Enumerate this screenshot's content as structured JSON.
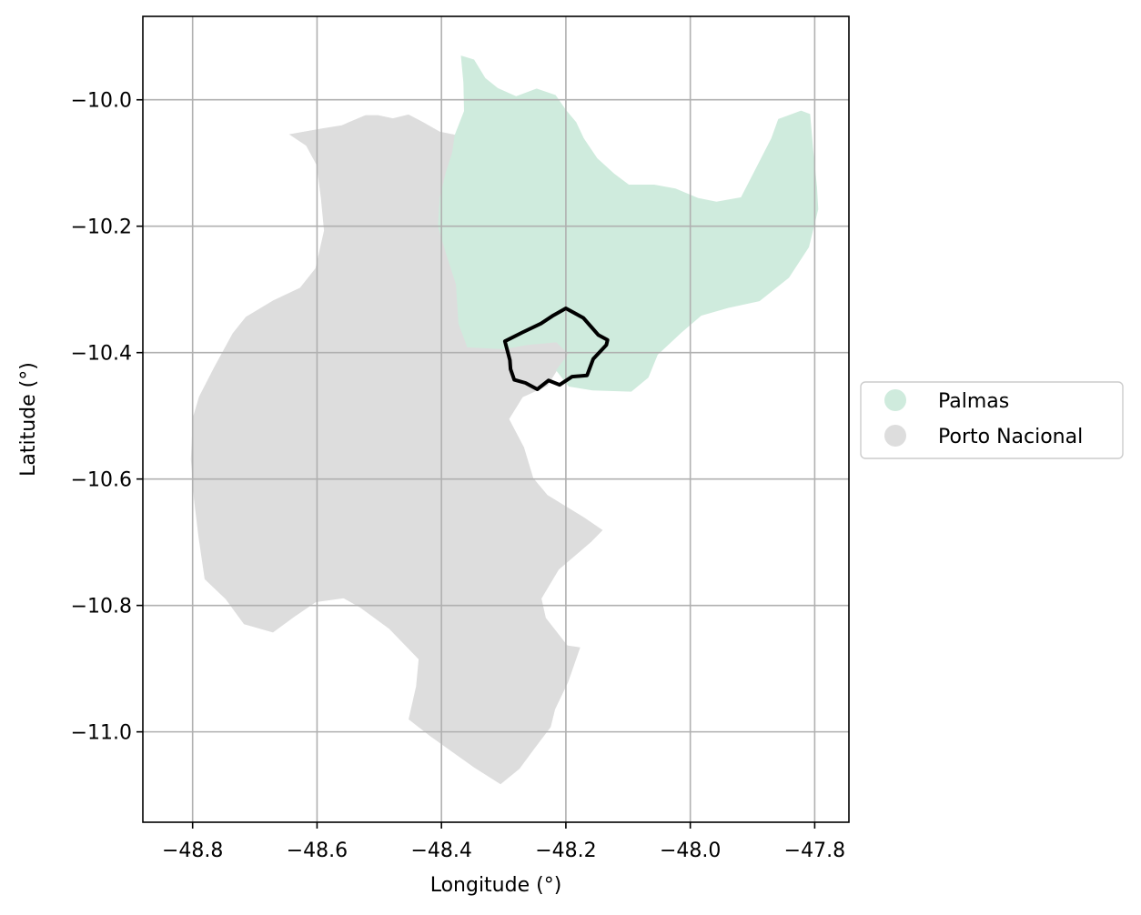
{
  "axes": {
    "xlabel": "Longitude (°)",
    "ylabel": "Latitude (°)",
    "x_ticks": [
      -48.8,
      -48.6,
      -48.4,
      -48.2,
      -48.0,
      -47.8
    ],
    "x_tick_labels": [
      "−48.8",
      "−48.6",
      "−48.4",
      "−48.2",
      "−48.0",
      "−47.8"
    ],
    "y_ticks": [
      -10.0,
      -10.2,
      -10.4,
      -10.6,
      -10.8,
      -11.0
    ],
    "y_tick_labels": [
      "−10.0",
      "−10.2",
      "−10.4",
      "−10.6",
      "−10.8",
      "−11.0"
    ],
    "xlim": [
      -48.88,
      -47.745
    ],
    "ylim": [
      -11.143,
      -9.868
    ],
    "grid": true,
    "grid_color": "#b0b0b0"
  },
  "legend": {
    "placement": "right-center",
    "items": [
      {
        "label": "Palmas",
        "color": "#cfebdd"
      },
      {
        "label": "Porto Nacional",
        "color": "#dddddd"
      }
    ]
  },
  "regions": [
    {
      "name": "Porto Nacional",
      "color": "#dddddd",
      "coords": [
        [
          -48.522,
          -10.025
        ],
        [
          -48.502,
          -10.025
        ],
        [
          -48.478,
          -10.03
        ],
        [
          -48.453,
          -10.024
        ],
        [
          -48.43,
          -10.036
        ],
        [
          -48.403,
          -10.051
        ],
        [
          -48.378,
          -10.056
        ],
        [
          -48.382,
          -10.083
        ],
        [
          -48.393,
          -10.117
        ],
        [
          -48.402,
          -10.155
        ],
        [
          -48.405,
          -10.2
        ],
        [
          -48.392,
          -10.243
        ],
        [
          -48.376,
          -10.292
        ],
        [
          -48.372,
          -10.354
        ],
        [
          -48.358,
          -10.391
        ],
        [
          -48.3,
          -10.394
        ],
        [
          -48.262,
          -10.387
        ],
        [
          -48.215,
          -10.383
        ],
        [
          -48.195,
          -10.402
        ],
        [
          -48.215,
          -10.428
        ],
        [
          -48.23,
          -10.452
        ],
        [
          -48.27,
          -10.47
        ],
        [
          -48.292,
          -10.505
        ],
        [
          -48.268,
          -10.55
        ],
        [
          -48.253,
          -10.599
        ],
        [
          -48.23,
          -10.626
        ],
        [
          -48.17,
          -10.662
        ],
        [
          -48.142,
          -10.681
        ],
        [
          -48.16,
          -10.699
        ],
        [
          -48.18,
          -10.716
        ],
        [
          -48.212,
          -10.743
        ],
        [
          -48.24,
          -10.789
        ],
        [
          -48.233,
          -10.82
        ],
        [
          -48.198,
          -10.864
        ],
        [
          -48.178,
          -10.867
        ],
        [
          -48.197,
          -10.921
        ],
        [
          -48.218,
          -10.964
        ],
        [
          -48.225,
          -10.992
        ],
        [
          -48.251,
          -11.026
        ],
        [
          -48.275,
          -11.058
        ],
        [
          -48.305,
          -11.082
        ],
        [
          -48.347,
          -11.056
        ],
        [
          -48.378,
          -11.034
        ],
        [
          -48.418,
          -11.006
        ],
        [
          -48.452,
          -10.98
        ],
        [
          -48.44,
          -10.928
        ],
        [
          -48.436,
          -10.885
        ],
        [
          -48.484,
          -10.836
        ],
        [
          -48.53,
          -10.803
        ],
        [
          -48.557,
          -10.788
        ],
        [
          -48.602,
          -10.794
        ],
        [
          -48.638,
          -10.818
        ],
        [
          -48.671,
          -10.842
        ],
        [
          -48.717,
          -10.829
        ],
        [
          -48.746,
          -10.79
        ],
        [
          -48.78,
          -10.758
        ],
        [
          -48.79,
          -10.69
        ],
        [
          -48.797,
          -10.632
        ],
        [
          -48.802,
          -10.569
        ],
        [
          -48.799,
          -10.503
        ],
        [
          -48.789,
          -10.47
        ],
        [
          -48.765,
          -10.424
        ],
        [
          -48.735,
          -10.37
        ],
        [
          -48.714,
          -10.344
        ],
        [
          -48.67,
          -10.318
        ],
        [
          -48.627,
          -10.298
        ],
        [
          -48.602,
          -10.267
        ],
        [
          -48.588,
          -10.207
        ],
        [
          -48.593,
          -10.156
        ],
        [
          -48.6,
          -10.103
        ],
        [
          -48.617,
          -10.072
        ],
        [
          -48.643,
          -10.055
        ],
        [
          -48.592,
          -10.046
        ],
        [
          -48.56,
          -10.041
        ]
      ]
    },
    {
      "name": "Palmas",
      "color": "#cfebdd",
      "coords": [
        [
          -48.368,
          -9.931
        ],
        [
          -48.348,
          -9.937
        ],
        [
          -48.33,
          -9.966
        ],
        [
          -48.31,
          -9.982
        ],
        [
          -48.28,
          -9.995
        ],
        [
          -48.247,
          -9.983
        ],
        [
          -48.217,
          -9.993
        ],
        [
          -48.2,
          -10.017
        ],
        [
          -48.184,
          -10.036
        ],
        [
          -48.172,
          -10.061
        ],
        [
          -48.15,
          -10.093
        ],
        [
          -48.122,
          -10.118
        ],
        [
          -48.099,
          -10.135
        ],
        [
          -48.058,
          -10.135
        ],
        [
          -48.024,
          -10.141
        ],
        [
          -47.988,
          -10.156
        ],
        [
          -47.958,
          -10.162
        ],
        [
          -47.918,
          -10.155
        ],
        [
          -47.893,
          -10.107
        ],
        [
          -47.869,
          -10.061
        ],
        [
          -47.858,
          -10.031
        ],
        [
          -47.822,
          -10.018
        ],
        [
          -47.808,
          -10.023
        ],
        [
          -47.803,
          -10.08
        ],
        [
          -47.797,
          -10.138
        ],
        [
          -47.795,
          -10.173
        ],
        [
          -47.81,
          -10.233
        ],
        [
          -47.842,
          -10.281
        ],
        [
          -47.889,
          -10.318
        ],
        [
          -47.937,
          -10.328
        ],
        [
          -47.983,
          -10.341
        ],
        [
          -48.015,
          -10.368
        ],
        [
          -48.053,
          -10.403
        ],
        [
          -48.068,
          -10.439
        ],
        [
          -48.095,
          -10.461
        ],
        [
          -48.157,
          -10.459
        ],
        [
          -48.195,
          -10.453
        ],
        [
          -48.215,
          -10.428
        ],
        [
          -48.195,
          -10.402
        ],
        [
          -48.215,
          -10.383
        ],
        [
          -48.262,
          -10.387
        ],
        [
          -48.3,
          -10.394
        ],
        [
          -48.358,
          -10.391
        ],
        [
          -48.372,
          -10.354
        ],
        [
          -48.376,
          -10.292
        ],
        [
          -48.392,
          -10.243
        ],
        [
          -48.405,
          -10.2
        ],
        [
          -48.402,
          -10.155
        ],
        [
          -48.393,
          -10.117
        ],
        [
          -48.382,
          -10.083
        ],
        [
          -48.378,
          -10.056
        ],
        [
          -48.363,
          -10.018
        ],
        [
          -48.364,
          -9.973
        ]
      ]
    }
  ],
  "outline": {
    "color": "#000000",
    "coords": [
      [
        -48.2,
        -10.33
      ],
      [
        -48.172,
        -10.345
      ],
      [
        -48.148,
        -10.372
      ],
      [
        -48.133,
        -10.38
      ],
      [
        -48.135,
        -10.388
      ],
      [
        -48.156,
        -10.41
      ],
      [
        -48.166,
        -10.436
      ],
      [
        -48.19,
        -10.438
      ],
      [
        -48.21,
        -10.451
      ],
      [
        -48.228,
        -10.444
      ],
      [
        -48.246,
        -10.458
      ],
      [
        -48.265,
        -10.448
      ],
      [
        -48.283,
        -10.443
      ],
      [
        -48.289,
        -10.426
      ],
      [
        -48.29,
        -10.412
      ],
      [
        -48.298,
        -10.382
      ],
      [
        -48.27,
        -10.368
      ],
      [
        -48.24,
        -10.354
      ],
      [
        -48.22,
        -10.341
      ]
    ]
  }
}
